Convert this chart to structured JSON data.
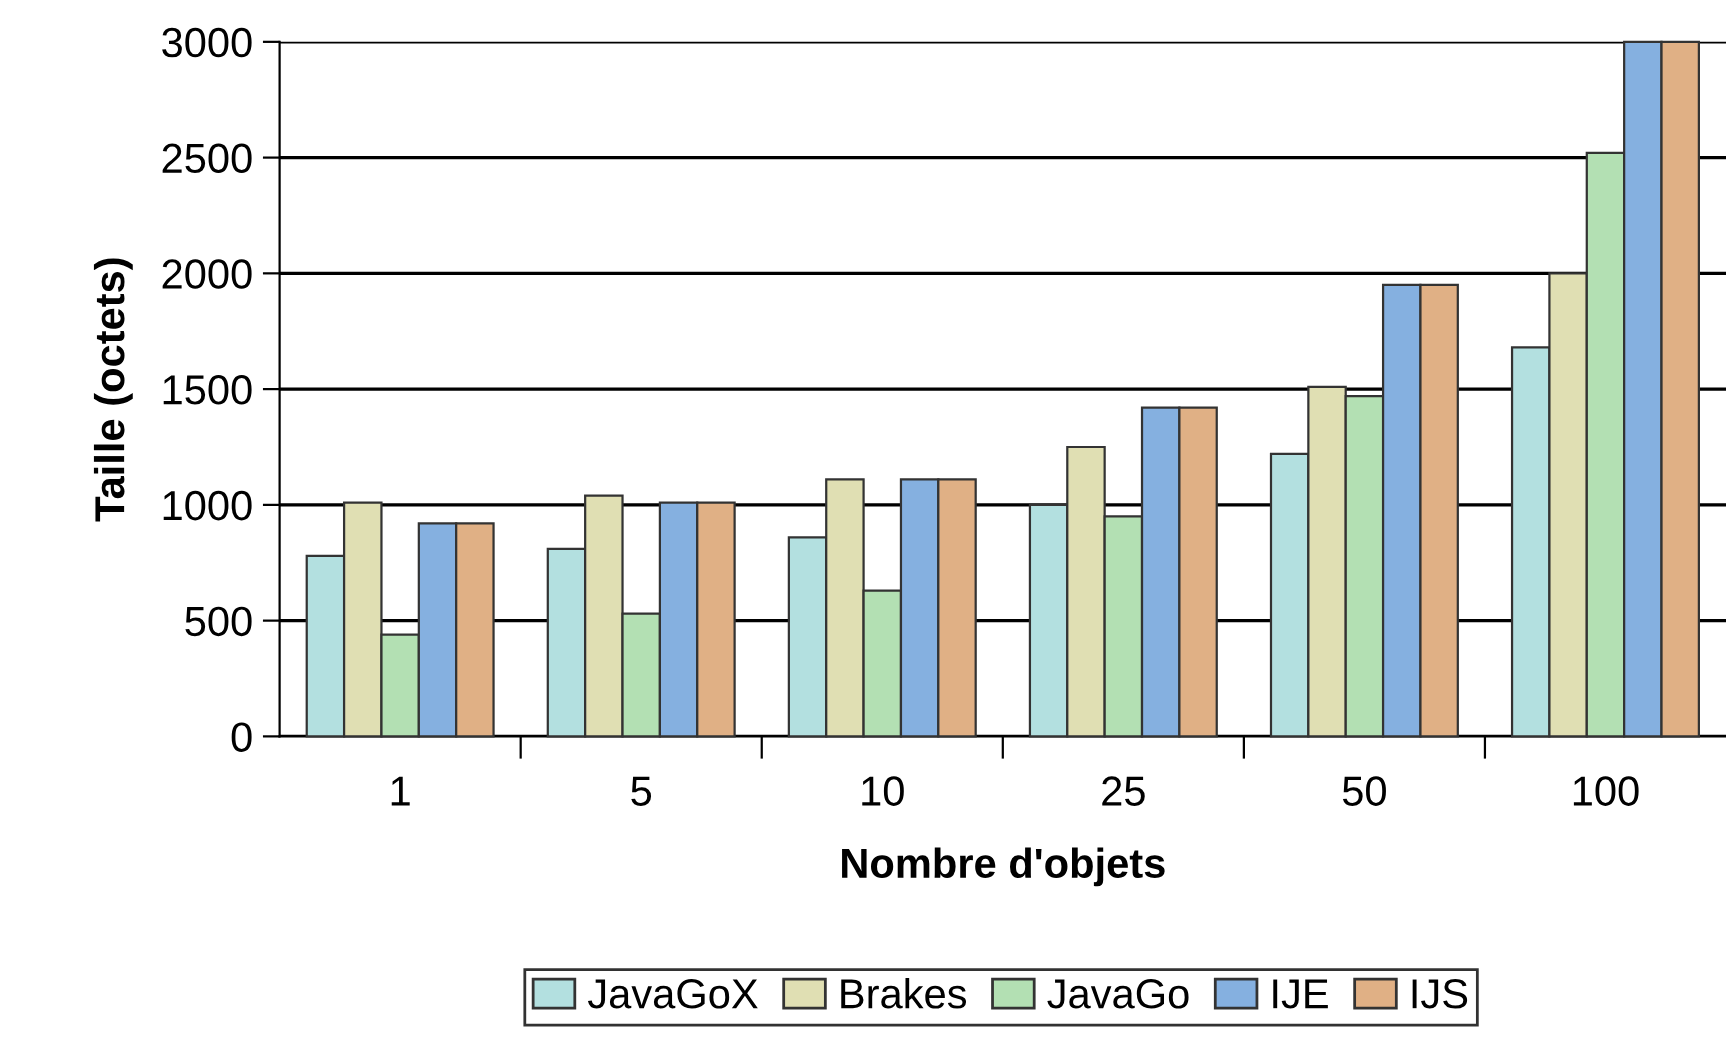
{
  "chart_data": {
    "type": "bar",
    "xlabel": "Nombre d'objets",
    "ylabel": "Taille (octets)",
    "categories": [
      "1",
      "5",
      "10",
      "25",
      "50",
      "100"
    ],
    "series": [
      {
        "name": "JavaGoX",
        "color": "#b3e0e0",
        "values": [
          780,
          810,
          860,
          1000,
          1220,
          1680
        ]
      },
      {
        "name": "Brakes",
        "color": "#e0dfb3",
        "values": [
          1010,
          1040,
          1110,
          1250,
          1510,
          2000
        ]
      },
      {
        "name": "JavaGo",
        "color": "#b3e0b3",
        "values": [
          440,
          530,
          630,
          950,
          1470,
          2520
        ]
      },
      {
        "name": "IJE",
        "color": "#85b0e0",
        "values": [
          920,
          1010,
          1110,
          1420,
          1950,
          3000
        ]
      },
      {
        "name": "IJS",
        "color": "#e0b085",
        "values": [
          920,
          1010,
          1110,
          1420,
          1950,
          3000
        ]
      }
    ],
    "ylim": [
      0,
      3000
    ],
    "yticks": [
      0,
      500,
      1000,
      1500,
      2000,
      2500,
      3000
    ],
    "grid": "y",
    "legend": "bottom"
  }
}
